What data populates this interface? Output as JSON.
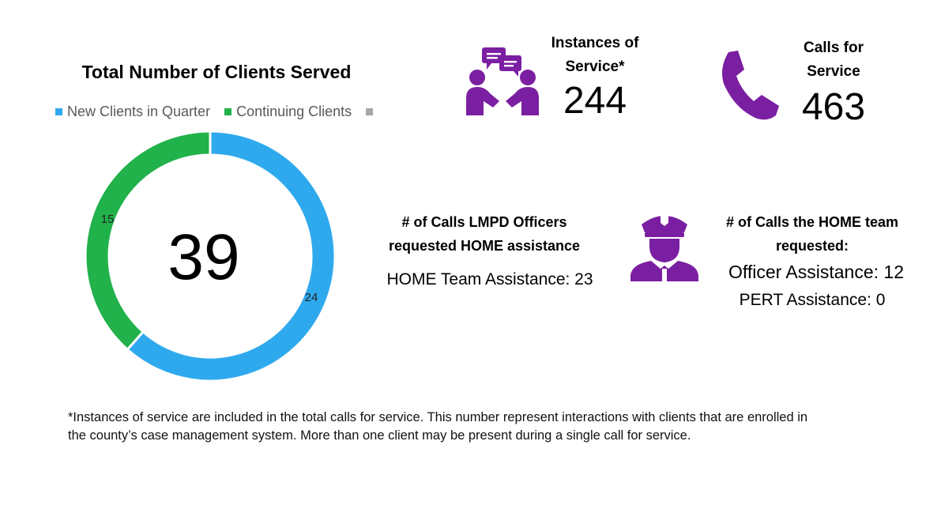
{
  "chart_data": {
    "type": "pie",
    "title": "Total Number of Clients Served",
    "categories": [
      "New Clients in Quarter",
      "Continuing Clients",
      ""
    ],
    "values": [
      24,
      15,
      0
    ],
    "colors": [
      "#2fa9ee",
      "#21b24b",
      "#a6a6a6"
    ],
    "total_label": "39",
    "legend": "top"
  },
  "instances": {
    "label_line1": "Instances of",
    "label_line2": "Service*",
    "value": "244",
    "icon": "meeting-icon",
    "icon_color": "#7b1fa2"
  },
  "calls": {
    "label_line1": "Calls for",
    "label_line2": "Service",
    "value": "463",
    "icon": "phone-icon",
    "icon_color": "#7b1fa2"
  },
  "lmpd": {
    "label_line1": "# of Calls LMPD Officers",
    "label_line2": "requested HOME assistance",
    "value_text": "HOME Team Assistance: 23"
  },
  "home_requested": {
    "label_line1": "# of Calls the HOME team",
    "label_line2": "requested:",
    "officer_text": "Officer Assistance: 12",
    "pert_text": "PERT Assistance: 0",
    "icon": "police-officer-icon",
    "icon_color": "#7b1fa2"
  },
  "footnote": {
    "line1": "*Instances of service are included in the total calls for service. This number represent interactions with clients that are enrolled in",
    "line2": "the county’s case management system. More than one client may be present during a single call for service."
  }
}
